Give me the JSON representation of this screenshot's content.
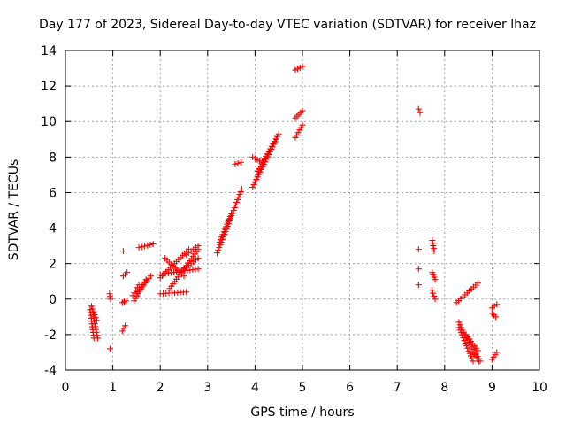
{
  "chart_data": {
    "type": "scatter",
    "title": "Day 177 of 2023, Sidereal Day-to-day VTEC variation (SDTVAR) for receiver lhaz",
    "xlabel": "GPS time / hours",
    "ylabel": "SDTVAR / TECUs",
    "xlim": [
      0,
      10
    ],
    "ylim": [
      -4,
      14
    ],
    "xticks": [
      0,
      1,
      2,
      3,
      4,
      5,
      6,
      7,
      8,
      9,
      10
    ],
    "yticks": [
      -4,
      -2,
      0,
      2,
      4,
      6,
      8,
      10,
      12,
      14
    ],
    "xtick_labels": [
      "0",
      "1",
      "2",
      "3",
      "4",
      "5",
      "6",
      "7",
      "8",
      "9",
      "10"
    ],
    "ytick_labels": [
      "-4",
      "-2",
      "0",
      "2",
      "4",
      "6",
      "8",
      "10",
      "12",
      "14"
    ],
    "grid": true,
    "marker": "+",
    "color": "#ff0000",
    "segments": [
      {
        "x": [
          0.52,
          0.6
        ],
        "y": [
          -0.6,
          -2.2
        ]
      },
      {
        "x": [
          0.55,
          0.66
        ],
        "y": [
          -0.4,
          -1.2
        ]
      },
      {
        "x": [
          0.58,
          0.68
        ],
        "y": [
          -0.9,
          -2.2
        ]
      },
      {
        "x": [
          0.93,
          0.95
        ],
        "y": [
          0.3,
          0.0
        ]
      },
      {
        "x": [
          1.2,
          1.28
        ],
        "y": [
          -0.2,
          -0.1
        ]
      },
      {
        "x": [
          1.2,
          1.26
        ],
        "y": [
          -1.8,
          -1.5
        ]
      },
      {
        "x": [
          1.22,
          1.3
        ],
        "y": [
          1.3,
          1.5
        ]
      },
      {
        "x": [
          1.42,
          1.55
        ],
        "y": [
          0.2,
          0.8
        ]
      },
      {
        "x": [
          1.45,
          1.7
        ],
        "y": [
          -0.1,
          1.1
        ]
      },
      {
        "x": [
          1.52,
          1.8
        ],
        "y": [
          0.4,
          1.3
        ]
      },
      {
        "x": [
          1.55,
          1.85
        ],
        "y": [
          2.9,
          3.1
        ]
      },
      {
        "x": [
          2.0,
          2.8
        ],
        "y": [
          1.4,
          1.7
        ]
      },
      {
        "x": [
          2.0,
          2.55
        ],
        "y": [
          0.3,
          0.4
        ]
      },
      {
        "x": [
          2.0,
          2.6
        ],
        "y": [
          1.2,
          2.8
        ]
      },
      {
        "x": [
          2.1,
          2.5
        ],
        "y": [
          2.3,
          1.3
        ]
      },
      {
        "x": [
          2.2,
          2.8
        ],
        "y": [
          0.6,
          2.8
        ]
      },
      {
        "x": [
          2.4,
          2.8
        ],
        "y": [
          1.5,
          2.3
        ]
      },
      {
        "x": [
          2.55,
          2.8
        ],
        "y": [
          2.5,
          3.0
        ]
      },
      {
        "x": [
          3.2,
          3.72
        ],
        "y": [
          2.6,
          6.2
        ]
      },
      {
        "x": [
          3.25,
          3.5
        ],
        "y": [
          3.2,
          4.8
        ]
      },
      {
        "x": [
          3.58,
          3.7
        ],
        "y": [
          7.6,
          7.7
        ]
      },
      {
        "x": [
          3.95,
          4.3
        ],
        "y": [
          6.3,
          8.3
        ]
      },
      {
        "x": [
          3.95,
          4.15
        ],
        "y": [
          8.0,
          7.7
        ]
      },
      {
        "x": [
          4.0,
          4.45
        ],
        "y": [
          6.6,
          9.0
        ]
      },
      {
        "x": [
          4.05,
          4.5
        ],
        "y": [
          7.2,
          9.3
        ]
      },
      {
        "x": [
          4.85,
          5.0
        ],
        "y": [
          10.2,
          10.6
        ]
      },
      {
        "x": [
          4.85,
          5.0
        ],
        "y": [
          9.1,
          9.8
        ]
      },
      {
        "x": [
          4.85,
          5.0
        ],
        "y": [
          12.9,
          13.1
        ]
      },
      {
        "x": [
          7.73,
          7.8
        ],
        "y": [
          0.5,
          0.0
        ]
      },
      {
        "x": [
          7.74,
          7.8
        ],
        "y": [
          1.5,
          1.1
        ]
      },
      {
        "x": [
          7.74,
          7.78
        ],
        "y": [
          3.3,
          2.7
        ]
      },
      {
        "x": [
          8.25,
          8.7
        ],
        "y": [
          -0.2,
          0.9
        ]
      },
      {
        "x": [
          8.3,
          8.45
        ],
        "y": [
          -1.3,
          -2.2
        ]
      },
      {
        "x": [
          8.3,
          8.6
        ],
        "y": [
          -1.6,
          -3.5
        ]
      },
      {
        "x": [
          8.4,
          8.75
        ],
        "y": [
          -1.9,
          -3.5
        ]
      },
      {
        "x": [
          8.45,
          8.7
        ],
        "y": [
          -2.0,
          -2.9
        ]
      },
      {
        "x": [
          8.6,
          8.72
        ],
        "y": [
          -3.0,
          -3.5
        ]
      },
      {
        "x": [
          9.0,
          9.1
        ],
        "y": [
          -3.4,
          -3.0
        ]
      },
      {
        "x": [
          9.0,
          9.1
        ],
        "y": [
          -0.5,
          -0.3
        ]
      },
      {
        "x": [
          9.0,
          9.08
        ],
        "y": [
          -0.8,
          -1.0
        ]
      }
    ],
    "points": [
      {
        "x": 0.94,
        "y": -2.8
      },
      {
        "x": 1.22,
        "y": 2.7
      },
      {
        "x": 7.45,
        "y": 10.7
      },
      {
        "x": 7.48,
        "y": 10.5
      },
      {
        "x": 7.45,
        "y": 2.8
      },
      {
        "x": 7.45,
        "y": 1.7
      },
      {
        "x": 7.45,
        "y": 0.8
      }
    ]
  }
}
